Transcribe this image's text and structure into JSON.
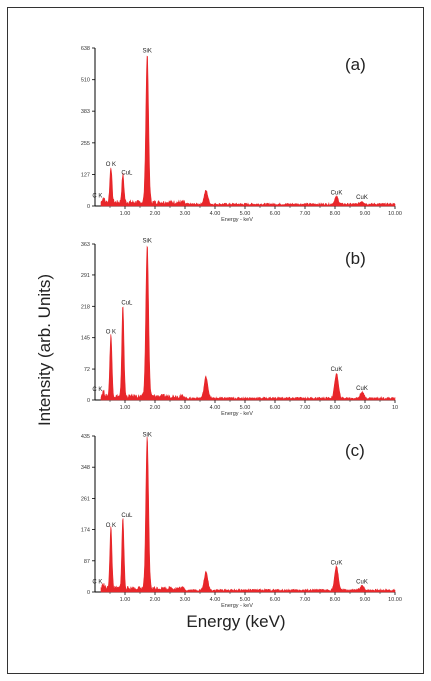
{
  "figure": {
    "ylabel": "Intensity (arb. Units)",
    "xlabel": "Energy (keV)"
  },
  "chart_data": [
    {
      "type": "line",
      "panel_label": "(a)",
      "xlabel": "Energy - keV",
      "xlim": [
        0,
        10
      ],
      "ylim": [
        0,
        638
      ],
      "yticks": [
        0,
        127,
        255,
        383,
        510,
        638
      ],
      "yticklabels": [
        "0",
        "127",
        "255",
        "383",
        "510",
        "638"
      ],
      "xticks": [
        1,
        2,
        3,
        4,
        5,
        6,
        7,
        8,
        9,
        10
      ],
      "xticklabels": [
        "1.00",
        "2.00",
        "3.00",
        "4.00",
        "5.00",
        "6.00",
        "7.00",
        "8.00",
        "9.00",
        "10.00"
      ],
      "peaks": [
        {
          "label": "C K",
          "x": 0.28,
          "y": 18
        },
        {
          "label": "O K",
          "x": 0.53,
          "y": 145
        },
        {
          "label": "CuL",
          "x": 0.93,
          "y": 112
        },
        {
          "label": "SiK",
          "x": 1.74,
          "y": 600
        },
        {
          "label": "",
          "x": 3.7,
          "y": 55
        },
        {
          "label": "CuK",
          "x": 8.05,
          "y": 30
        },
        {
          "label": "CuK",
          "x": 8.9,
          "y": 12
        }
      ],
      "color": "#e8262a"
    },
    {
      "type": "line",
      "panel_label": "(b)",
      "xlabel": "Energy - keV",
      "xlim": [
        0,
        10
      ],
      "ylim": [
        0,
        363
      ],
      "yticks": [
        0,
        72,
        145,
        218,
        291,
        363
      ],
      "yticklabels": [
        "0",
        "72",
        "145",
        "218",
        "291",
        "363"
      ],
      "xticks": [
        1,
        2,
        3,
        4,
        5,
        6,
        7,
        8,
        9,
        10
      ],
      "xticklabels": [
        "1.00",
        "2.00",
        "3.00",
        "4.00",
        "5.00",
        "6.00",
        "7.00",
        "8.00",
        "9.00",
        "10"
      ],
      "peaks": [
        {
          "label": "C K",
          "x": 0.28,
          "y": 12
        },
        {
          "label": "O K",
          "x": 0.53,
          "y": 145
        },
        {
          "label": "CuL",
          "x": 0.93,
          "y": 213
        },
        {
          "label": "SiK",
          "x": 1.74,
          "y": 355
        },
        {
          "label": "",
          "x": 3.7,
          "y": 50
        },
        {
          "label": "CuK",
          "x": 8.05,
          "y": 58
        },
        {
          "label": "CuK",
          "x": 8.9,
          "y": 14
        }
      ],
      "color": "#e8262a"
    },
    {
      "type": "line",
      "panel_label": "(c)",
      "xlabel": "Energy - keV",
      "xlim": [
        0,
        10
      ],
      "ylim": [
        0,
        435
      ],
      "yticks": [
        0,
        87,
        174,
        261,
        348,
        435
      ],
      "yticklabels": [
        "0",
        "87",
        "174",
        "261",
        "348",
        "435"
      ],
      "xticks": [
        1,
        2,
        3,
        4,
        5,
        6,
        7,
        8,
        9,
        10
      ],
      "xticklabels": [
        "1.00",
        "2.00",
        "3.00",
        "4.00",
        "5.00",
        "6.00",
        "7.00",
        "8.00",
        "9.00",
        "10.00"
      ],
      "peaks": [
        {
          "label": "C K",
          "x": 0.28,
          "y": 12
        },
        {
          "label": "O K",
          "x": 0.53,
          "y": 170
        },
        {
          "label": "CuL",
          "x": 0.93,
          "y": 198
        },
        {
          "label": "SiK",
          "x": 1.74,
          "y": 420
        },
        {
          "label": "",
          "x": 3.7,
          "y": 50
        },
        {
          "label": "CuK",
          "x": 8.05,
          "y": 66
        },
        {
          "label": "CuK",
          "x": 8.9,
          "y": 12
        }
      ],
      "color": "#e8262a"
    }
  ]
}
